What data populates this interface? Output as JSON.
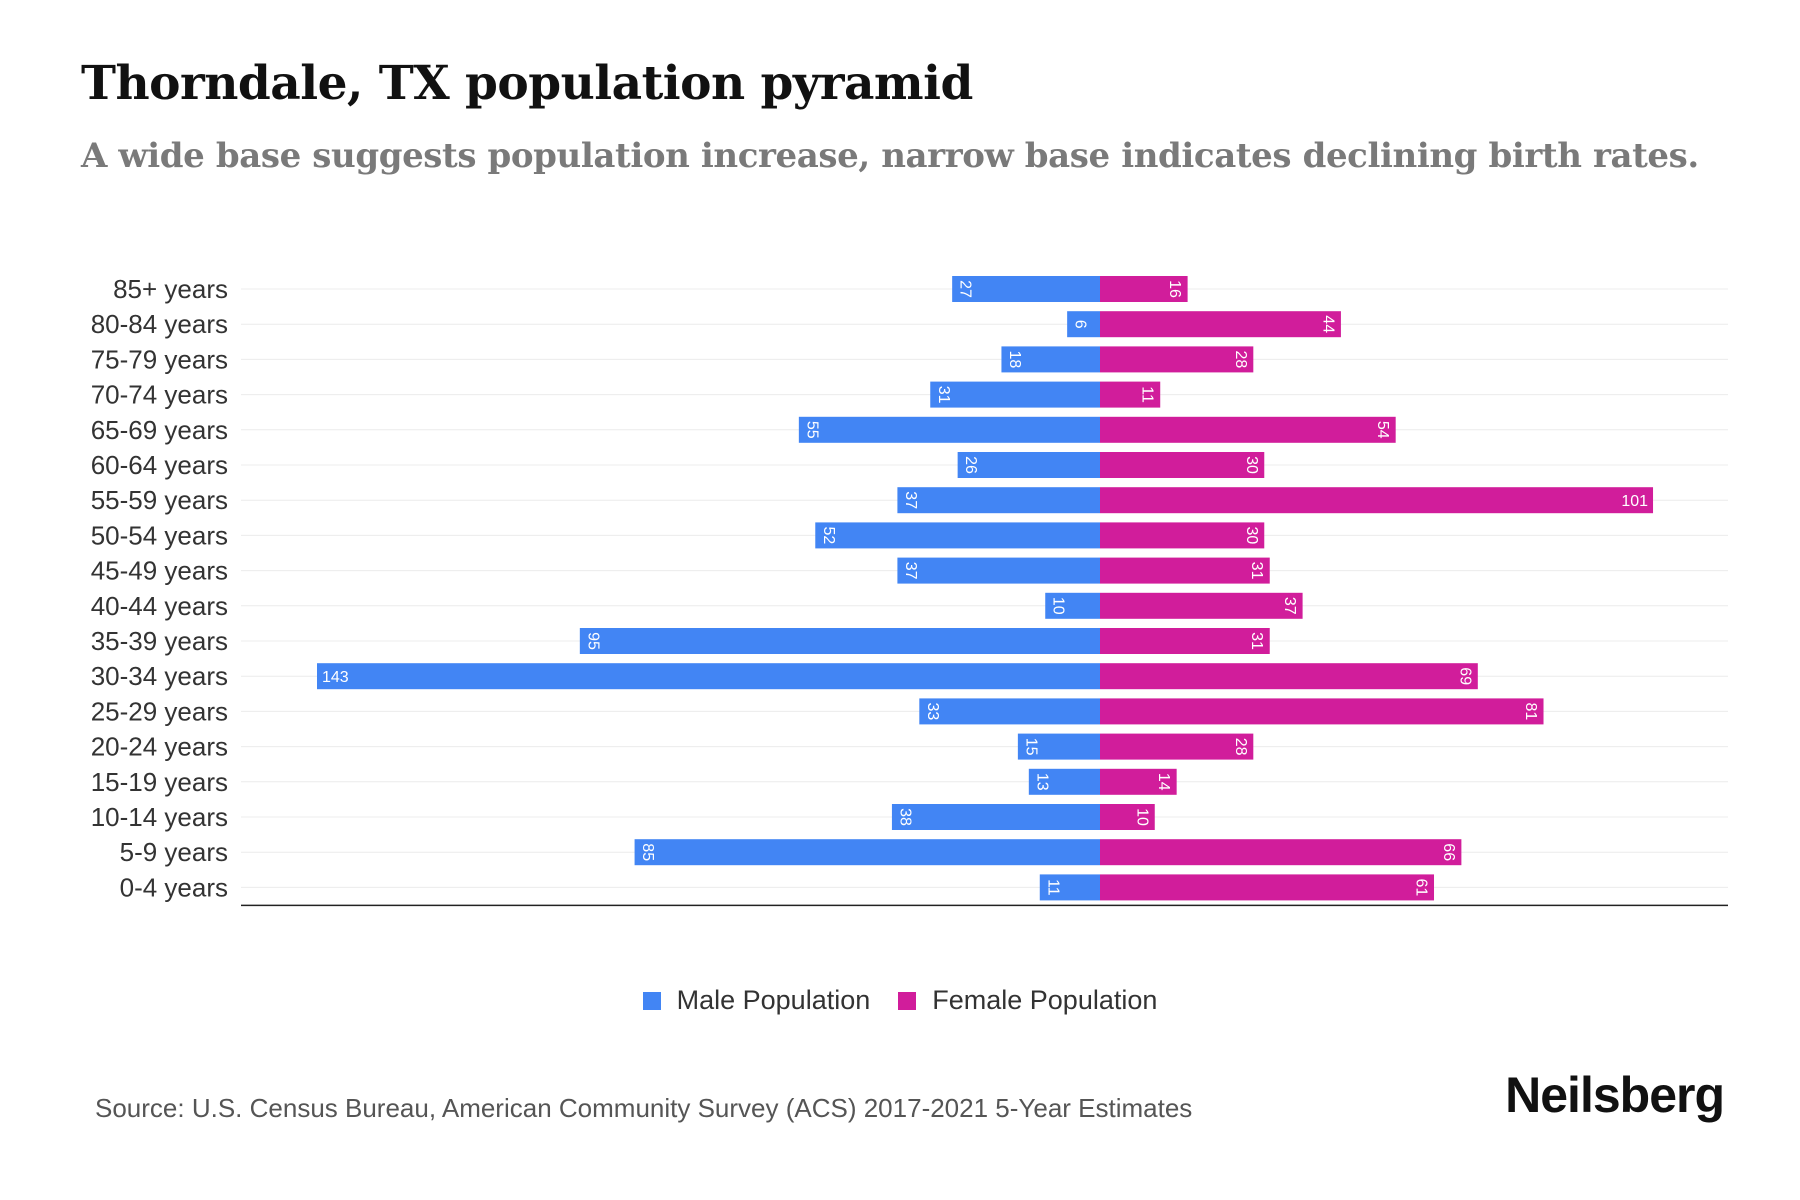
{
  "header": {
    "title": "Thorndale, TX population pyramid",
    "subtitle": "A wide base suggests population increase, narrow base indicates declining birth rates."
  },
  "chart_data": {
    "type": "bar",
    "orientation": "horizontal-diverging",
    "categories": [
      "85+ years",
      "80-84 years",
      "75-79 years",
      "70-74 years",
      "65-69 years",
      "60-64 years",
      "55-59 years",
      "50-54 years",
      "45-49 years",
      "40-44 years",
      "35-39 years",
      "30-34 years",
      "25-29 years",
      "20-24 years",
      "15-19 years",
      "10-14 years",
      "5-9 years",
      "0-4 years"
    ],
    "series": [
      {
        "name": "Male Population",
        "color": "#4285f4",
        "values": [
          27,
          6,
          18,
          31,
          55,
          26,
          37,
          52,
          37,
          10,
          95,
          143,
          33,
          15,
          13,
          38,
          85,
          11
        ]
      },
      {
        "name": "Female Population",
        "color": "#d11d9b",
        "values": [
          16,
          44,
          28,
          11,
          54,
          30,
          101,
          30,
          31,
          37,
          31,
          69,
          81,
          28,
          14,
          10,
          66,
          61
        ]
      }
    ],
    "xlim": [
      -157,
      115
    ],
    "grid": true,
    "legend": "bottom-center"
  },
  "legend": {
    "male_label": "Male Population",
    "female_label": "Female Population"
  },
  "footer": {
    "source": "Source: U.S. Census Bureau, American Community Survey (ACS) 2017-2021 5-Year Estimates",
    "brand": "Neilsberg"
  }
}
